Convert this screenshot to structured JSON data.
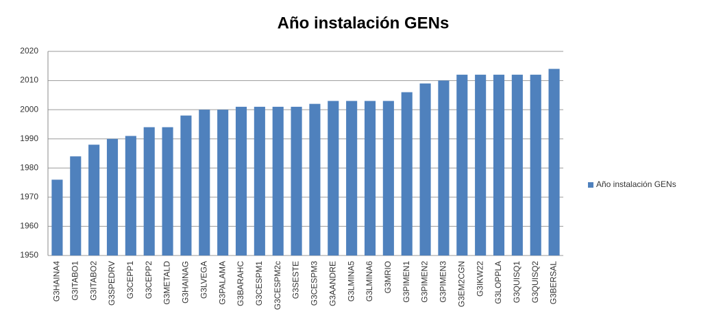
{
  "chart_data": {
    "type": "bar",
    "title": "Año instalación GENs",
    "categories": [
      "G3HAINA4",
      "G3ITABO1",
      "G3ITABO2",
      "G3SPEDRV",
      "G3CEPP1",
      "G3CEPP2",
      "G3METALD",
      "G3HAINAG",
      "G3LVEGA",
      "G3PALAMA",
      "G3BARAHC",
      "G3CESPM1",
      "G3CESPM2c",
      "G3SESTE",
      "G3CESPM3",
      "G3AANDRE",
      "G3LMINA5",
      "G3LMINA6",
      "G3MRIO",
      "G3PIMEN1",
      "G3PIMEN2",
      "G3PIMEN3",
      "G3EM2CGN",
      "G3IKW22",
      "G3LOPPLA",
      "G3QUISQ1",
      "G3QUISQ2",
      "G3BERSAL"
    ],
    "series": [
      {
        "name": "Año instalación GENs",
        "color": "#4f81bd",
        "values": [
          1976,
          1984,
          1988,
          1990,
          1991,
          1994,
          1994,
          1998,
          2000,
          2000,
          2001,
          2001,
          2001,
          2001,
          2002,
          2003,
          2003,
          2003,
          2003,
          2006,
          2009,
          2010,
          2012,
          2012,
          2012,
          2012,
          2012,
          2014
        ]
      }
    ],
    "ylim": [
      1950,
      2020
    ],
    "yticks": [
      1950,
      1960,
      1970,
      1980,
      1990,
      2000,
      2010,
      2020
    ],
    "grid": true,
    "legend": "right"
  }
}
